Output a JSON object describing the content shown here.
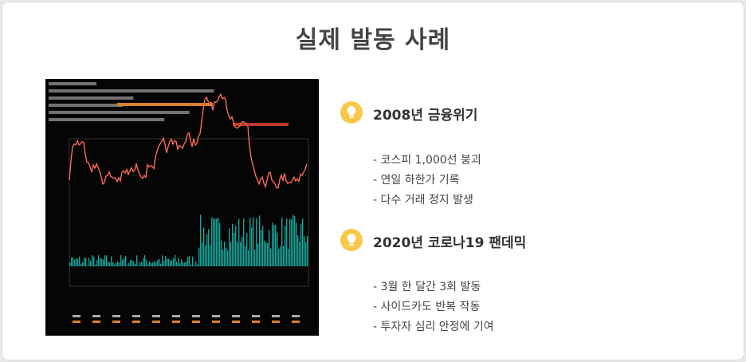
{
  "title": "실제 발동 사례",
  "sections": [
    {
      "heading": "2008년 금융위기",
      "items": [
        "- 코스피 1,000선 붕괴",
        "- 연일 하한가 기록",
        "- 다수 거래 정지 발생"
      ]
    },
    {
      "heading": "2020년 코로나19 팬데믹",
      "items": [
        "- 3월 한 달간 3회 발동",
        "- 사이드카도 반복 작동",
        "- 투자자 심리 안정에 기여"
      ]
    }
  ]
}
